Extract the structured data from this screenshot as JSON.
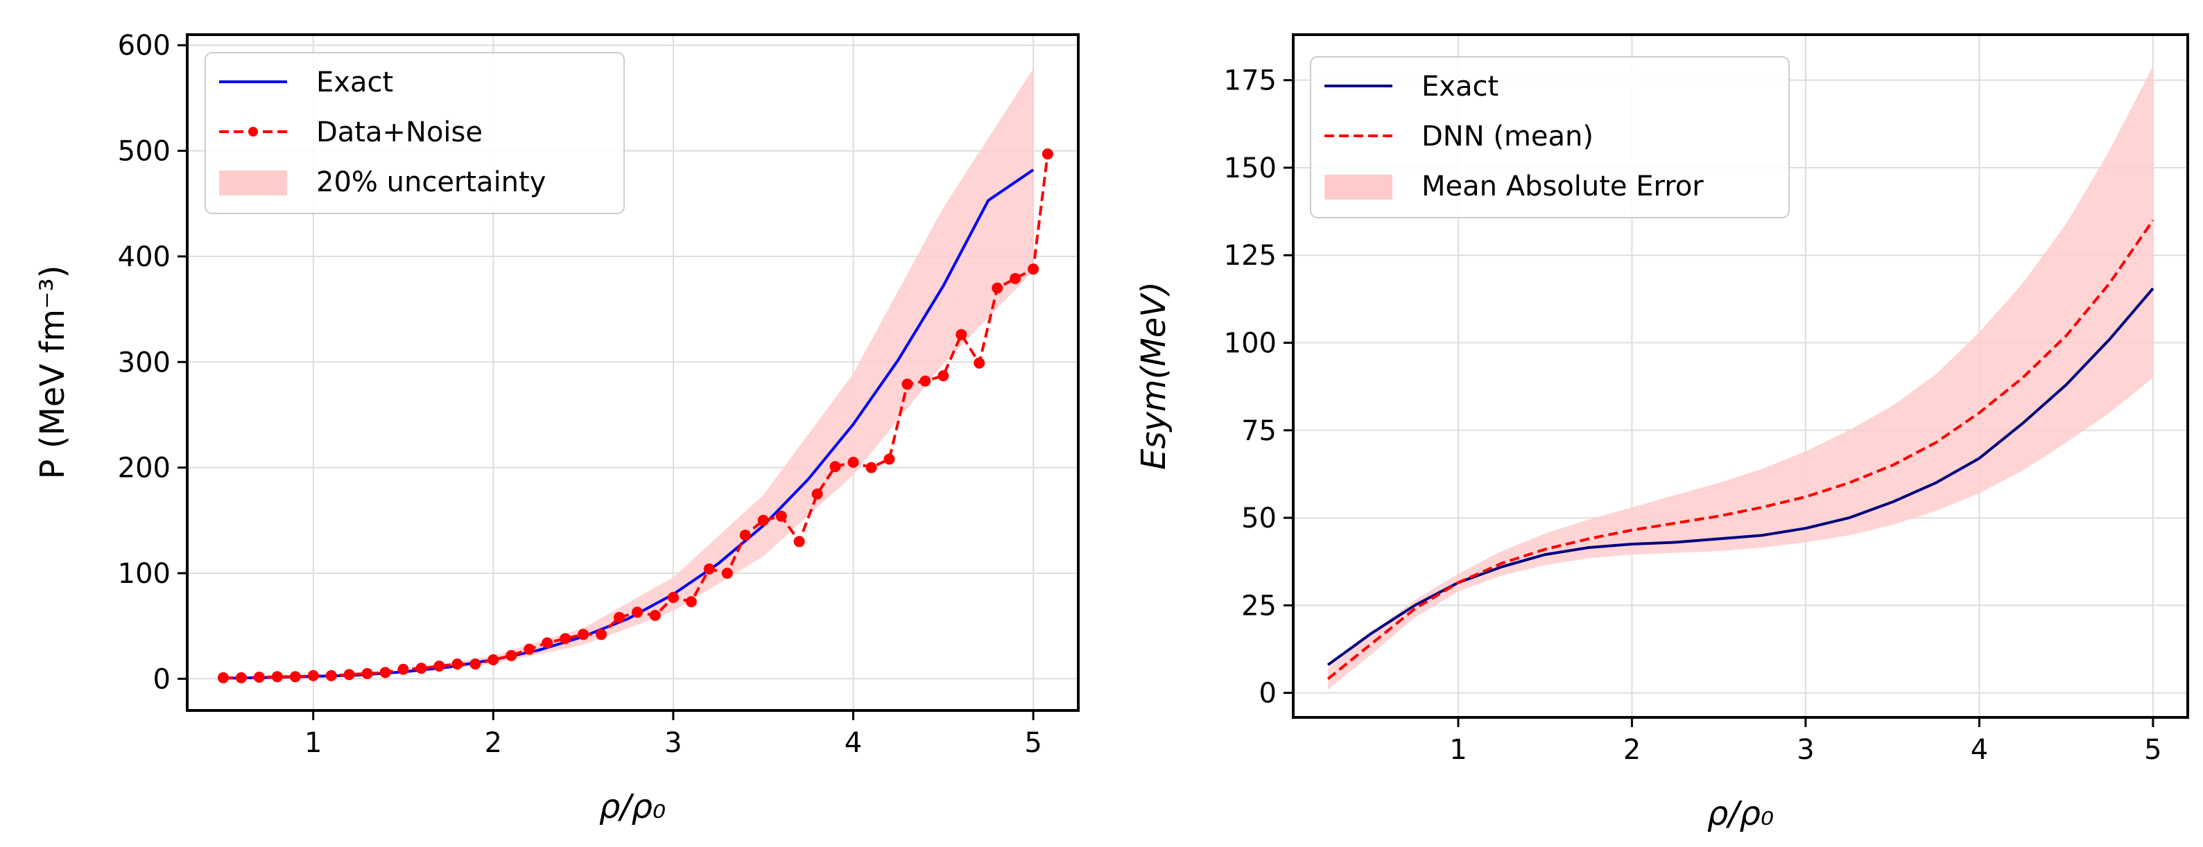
{
  "chart_data": [
    {
      "type": "line",
      "xlabel": "ρ/ρ₀",
      "ylabel": "P (MeV fm⁻³)",
      "xlim": [
        0.3,
        5.25
      ],
      "ylim": [
        -30,
        610
      ],
      "xticks": [
        1,
        2,
        3,
        4,
        5
      ],
      "yticks": [
        0,
        100,
        200,
        300,
        400,
        500,
        600
      ],
      "grid": true,
      "legend_position": "upper-left",
      "legend": [
        "Exact",
        "Data+Noise",
        "20% uncertainty"
      ],
      "series": [
        {
          "name": "Exact",
          "color": "#0000ff",
          "style": "solid",
          "x": [
            0.5,
            0.75,
            1.0,
            1.25,
            1.5,
            1.75,
            2.0,
            2.25,
            2.5,
            2.75,
            3.0,
            3.25,
            3.5,
            3.75,
            4.0,
            4.25,
            4.5,
            4.75,
            5.0
          ],
          "y": [
            0.5,
            1.2,
            2.2,
            3.5,
            6.5,
            11,
            18,
            27,
            40,
            57,
            80,
            109,
            145,
            189,
            241,
            302,
            372,
            453,
            482
          ]
        },
        {
          "name": "Data+Noise",
          "color": "#ff0000",
          "style": "dashed-markers",
          "x": [
            0.5,
            0.6,
            0.7,
            0.8,
            0.9,
            1.0,
            1.1,
            1.2,
            1.3,
            1.4,
            1.5,
            1.6,
            1.7,
            1.8,
            1.9,
            2.0,
            2.1,
            2.2,
            2.3,
            2.4,
            2.5,
            2.6,
            2.7,
            2.8,
            2.9,
            3.0,
            3.1,
            3.2,
            3.3,
            3.4,
            3.5,
            3.6,
            3.7,
            3.8,
            3.9,
            4.0,
            4.1,
            4.2,
            4.3,
            4.4,
            4.5,
            4.6,
            4.7,
            4.8,
            4.9,
            5.0,
            5.08
          ],
          "y": [
            1,
            1,
            1.5,
            2,
            2,
            3,
            3,
            4,
            5,
            6,
            9,
            10,
            12,
            14,
            14,
            18,
            22,
            28,
            34,
            38,
            42,
            42,
            58,
            63,
            60,
            77,
            73,
            104,
            100,
            136,
            150,
            154,
            130,
            175,
            201,
            205,
            200,
            208,
            279,
            282,
            287,
            326,
            299,
            370,
            379,
            388,
            497
          ]
        },
        {
          "name": "20% uncertainty",
          "color": "#ffcccc",
          "style": "band",
          "x": [
            0.5,
            1.0,
            1.5,
            2.0,
            2.5,
            3.0,
            3.5,
            4.0,
            4.5,
            5.0
          ],
          "lower": [
            0.4,
            1.8,
            5.2,
            14.4,
            32,
            64,
            116,
            193,
            298,
            386
          ],
          "upper": [
            0.6,
            2.6,
            7.8,
            21.6,
            48,
            96,
            174,
            289,
            446,
            578
          ]
        }
      ]
    },
    {
      "type": "line",
      "xlabel": "ρ/ρ₀",
      "ylabel": "Esym(MeV)",
      "xlim": [
        0.05,
        5.2
      ],
      "ylim": [
        -7,
        188
      ],
      "xticks": [
        1,
        2,
        3,
        4,
        5
      ],
      "yticks": [
        0,
        25,
        50,
        75,
        100,
        125,
        150,
        175
      ],
      "grid": true,
      "legend_position": "upper-left",
      "legend": [
        "Exact",
        "DNN (mean)",
        "Mean Absolute Error"
      ],
      "series": [
        {
          "name": "Exact",
          "color": "#000080",
          "style": "solid",
          "x": [
            0.25,
            0.5,
            0.75,
            1.0,
            1.25,
            1.5,
            1.75,
            2.0,
            2.25,
            2.5,
            2.75,
            3.0,
            3.25,
            3.5,
            3.75,
            4.0,
            4.25,
            4.5,
            4.75,
            5.0
          ],
          "y": [
            8,
            17,
            25,
            31.5,
            36,
            39.5,
            41.5,
            42.5,
            43,
            44,
            45,
            47,
            50,
            54.5,
            60,
            67,
            77,
            88,
            101,
            115.5
          ]
        },
        {
          "name": "DNN (mean)",
          "color": "#ff0000",
          "style": "dashed",
          "x": [
            0.25,
            0.5,
            0.75,
            1.0,
            1.25,
            1.5,
            1.75,
            2.0,
            2.25,
            2.5,
            2.75,
            3.0,
            3.25,
            3.5,
            3.75,
            4.0,
            4.25,
            4.5,
            4.75,
            5.0
          ],
          "y": [
            4,
            14,
            24,
            31.5,
            37,
            41,
            44,
            46.5,
            48.5,
            50.5,
            53,
            56,
            60,
            65,
            71.5,
            80,
            90,
            102,
            117,
            135
          ]
        },
        {
          "name": "Mean Absolute Error",
          "color": "#ffcccc",
          "style": "band",
          "x": [
            0.25,
            0.5,
            0.75,
            1.0,
            1.25,
            1.5,
            1.75,
            2.0,
            2.25,
            2.5,
            2.75,
            3.0,
            3.25,
            3.5,
            3.75,
            4.0,
            4.25,
            4.5,
            4.75,
            5.0
          ],
          "lower": [
            1,
            11,
            21.5,
            29,
            33.5,
            36.5,
            38.5,
            39.5,
            40,
            40.5,
            41.5,
            43,
            45,
            48,
            52,
            57,
            63.5,
            71.5,
            80,
            90
          ],
          "upper": [
            7,
            17,
            26.5,
            34,
            40.5,
            45.5,
            49.5,
            53,
            56.5,
            60,
            64,
            69,
            75,
            82,
            91,
            103,
            117,
            134,
            155,
            179
          ]
        }
      ]
    }
  ]
}
